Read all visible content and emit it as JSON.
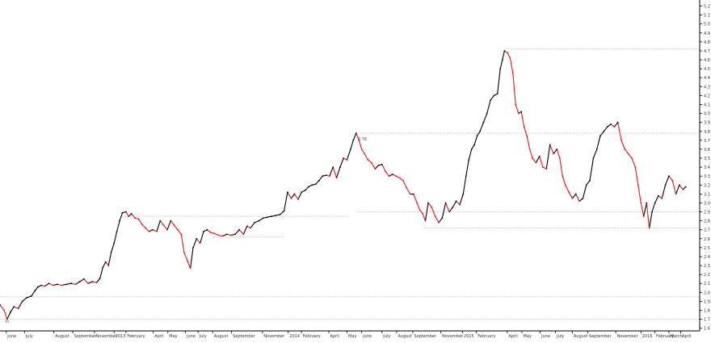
{
  "chart_data": {
    "type": "line",
    "title": "",
    "xlabel": "",
    "ylabel": "",
    "ylim": [
      1.57,
      5.25
    ],
    "y_ticks": [
      1.6,
      1.7,
      1.8,
      1.9,
      2.0,
      2.1,
      2.2,
      2.3,
      2.4,
      2.5,
      2.6,
      2.7,
      2.8,
      2.9,
      3.0,
      3.1,
      3.2,
      3.3,
      3.4,
      3.5,
      3.6,
      3.7,
      3.8,
      3.9,
      4.0,
      4.1,
      4.2,
      4.3,
      4.4,
      4.5,
      4.6,
      4.7,
      4.8,
      4.9,
      5.0,
      5.1,
      5.2
    ],
    "y_tick_labels": [
      "1.6",
      "1.7",
      "1.8",
      "1.9",
      "2.0",
      "2.1",
      "2.2",
      "2.3",
      "2.4",
      "2.5",
      "2.6",
      "2.7",
      "2.8",
      "2.9",
      "3.0",
      "3.1",
      "3.2",
      "3.3",
      "3.4",
      "3.5",
      "3.6",
      "3.7",
      "3.8",
      "3.9",
      "4.0",
      "4.1",
      "4.2",
      "4.3",
      "4.4",
      "4.5",
      "4.6",
      "4.7",
      "4.8",
      "4.9",
      "5.0",
      "5.1",
      "5.2"
    ],
    "x_range": [
      0,
      100
    ],
    "x_ticks": [
      {
        "x": 0.9,
        "label": "June"
      },
      {
        "x": 3.5,
        "label": "July"
      },
      {
        "x": 7.7,
        "label": "August"
      },
      {
        "x": 10.4,
        "label": "September"
      },
      {
        "x": 13.5,
        "label": "November"
      },
      {
        "x": 16.3,
        "label": "2013"
      },
      {
        "x": 18.0,
        "label": "February"
      },
      {
        "x": 21.9,
        "label": "April"
      },
      {
        "x": 24.0,
        "label": "May"
      },
      {
        "x": 26.5,
        "label": "June"
      },
      {
        "x": 28.3,
        "label": "July"
      },
      {
        "x": 30.4,
        "label": "August"
      },
      {
        "x": 33.1,
        "label": "September"
      },
      {
        "x": 37.5,
        "label": "November"
      },
      {
        "x": 41.2,
        "label": "2014"
      },
      {
        "x": 43.1,
        "label": "February"
      },
      {
        "x": 47.0,
        "label": "April"
      },
      {
        "x": 49.6,
        "label": "May"
      },
      {
        "x": 51.7,
        "label": "June"
      },
      {
        "x": 54.6,
        "label": "July"
      },
      {
        "x": 56.7,
        "label": "August"
      },
      {
        "x": 59.0,
        "label": "September"
      },
      {
        "x": 63.0,
        "label": "November"
      },
      {
        "x": 66.1,
        "label": "2015"
      },
      {
        "x": 68.1,
        "label": "February"
      },
      {
        "x": 72.5,
        "label": "April"
      },
      {
        "x": 74.6,
        "label": "May"
      },
      {
        "x": 77.2,
        "label": "June"
      },
      {
        "x": 79.4,
        "label": "July"
      },
      {
        "x": 81.8,
        "label": "August"
      },
      {
        "x": 84.0,
        "label": "September"
      },
      {
        "x": 88.0,
        "label": "November"
      },
      {
        "x": 91.6,
        "label": "2016"
      },
      {
        "x": 93.6,
        "label": "February"
      },
      {
        "x": 95.6,
        "label": "March"
      },
      {
        "x": 97.3,
        "label": "April"
      }
    ],
    "series": [
      {
        "values": [
          [
            0.0,
            1.86
          ],
          [
            0.6,
            1.8
          ],
          [
            1.0,
            1.7
          ],
          [
            1.5,
            1.78
          ],
          [
            2.0,
            1.84
          ],
          [
            2.6,
            1.82
          ],
          [
            3.2,
            1.9
          ],
          [
            3.8,
            1.94
          ],
          [
            4.5,
            1.96
          ],
          [
            5.0,
            2.02
          ],
          [
            5.4,
            2.06
          ],
          [
            5.9,
            2.08
          ],
          [
            6.4,
            2.07
          ],
          [
            7.0,
            2.1
          ],
          [
            7.6,
            2.08
          ],
          [
            8.2,
            2.09
          ],
          [
            8.8,
            2.08
          ],
          [
            9.5,
            2.09
          ],
          [
            10.2,
            2.1
          ],
          [
            10.8,
            2.09
          ],
          [
            11.4,
            2.12
          ],
          [
            12.0,
            2.15
          ],
          [
            12.6,
            2.1
          ],
          [
            13.2,
            2.12
          ],
          [
            13.8,
            2.11
          ],
          [
            14.3,
            2.16
          ],
          [
            14.7,
            2.28
          ],
          [
            15.1,
            2.34
          ],
          [
            15.5,
            2.3
          ],
          [
            15.9,
            2.45
          ],
          [
            16.3,
            2.55
          ],
          [
            16.7,
            2.68
          ],
          [
            17.1,
            2.8
          ],
          [
            17.5,
            2.89
          ],
          [
            18.0,
            2.9
          ],
          [
            18.4,
            2.85
          ],
          [
            18.8,
            2.88
          ],
          [
            19.3,
            2.83
          ],
          [
            19.8,
            2.82
          ],
          [
            20.3,
            2.76
          ],
          [
            20.8,
            2.72
          ],
          [
            21.3,
            2.68
          ],
          [
            21.8,
            2.7
          ],
          [
            22.4,
            2.68
          ],
          [
            22.9,
            2.8
          ],
          [
            23.4,
            2.75
          ],
          [
            23.9,
            2.7
          ],
          [
            24.4,
            2.8
          ],
          [
            24.9,
            2.75
          ],
          [
            25.4,
            2.7
          ],
          [
            25.9,
            2.65
          ],
          [
            26.3,
            2.45
          ],
          [
            26.8,
            2.35
          ],
          [
            27.2,
            2.27
          ],
          [
            27.6,
            2.5
          ],
          [
            28.1,
            2.6
          ],
          [
            28.6,
            2.55
          ],
          [
            29.1,
            2.68
          ],
          [
            29.6,
            2.7
          ],
          [
            30.1,
            2.67
          ],
          [
            30.6,
            2.66
          ],
          [
            31.2,
            2.64
          ],
          [
            31.8,
            2.63
          ],
          [
            32.4,
            2.65
          ],
          [
            33.0,
            2.64
          ],
          [
            33.6,
            2.65
          ],
          [
            34.2,
            2.7
          ],
          [
            34.8,
            2.65
          ],
          [
            35.3,
            2.74
          ],
          [
            35.8,
            2.72
          ],
          [
            36.4,
            2.78
          ],
          [
            37.0,
            2.8
          ],
          [
            37.6,
            2.83
          ],
          [
            38.2,
            2.84
          ],
          [
            38.8,
            2.85
          ],
          [
            39.4,
            2.86
          ],
          [
            40.0,
            2.87
          ],
          [
            40.6,
            2.91
          ],
          [
            41.1,
            3.12
          ],
          [
            41.6,
            3.05
          ],
          [
            42.1,
            3.1
          ],
          [
            42.6,
            3.04
          ],
          [
            43.1,
            3.12
          ],
          [
            43.6,
            3.14
          ],
          [
            44.1,
            3.18
          ],
          [
            44.6,
            3.2
          ],
          [
            45.1,
            3.21
          ],
          [
            45.6,
            3.25
          ],
          [
            46.1,
            3.3
          ],
          [
            46.6,
            3.31
          ],
          [
            47.1,
            3.3
          ],
          [
            47.6,
            3.4
          ],
          [
            48.1,
            3.28
          ],
          [
            48.6,
            3.4
          ],
          [
            49.1,
            3.5
          ],
          [
            49.6,
            3.48
          ],
          [
            50.1,
            3.6
          ],
          [
            50.5,
            3.7
          ],
          [
            50.9,
            3.78
          ],
          [
            51.3,
            3.7
          ],
          [
            51.7,
            3.6
          ],
          [
            52.1,
            3.55
          ],
          [
            52.6,
            3.48
          ],
          [
            53.1,
            3.45
          ],
          [
            53.6,
            3.38
          ],
          [
            54.1,
            3.42
          ],
          [
            54.6,
            3.43
          ],
          [
            55.1,
            3.35
          ],
          [
            55.6,
            3.3
          ],
          [
            56.1,
            3.32
          ],
          [
            56.6,
            3.3
          ],
          [
            57.1,
            3.28
          ],
          [
            57.6,
            3.25
          ],
          [
            58.1,
            3.17
          ],
          [
            58.6,
            3.1
          ],
          [
            59.1,
            3.1
          ],
          [
            59.6,
            3.0
          ],
          [
            60.0,
            2.92
          ],
          [
            60.4,
            2.88
          ],
          [
            60.8,
            2.8
          ],
          [
            61.2,
            3.0
          ],
          [
            61.7,
            2.95
          ],
          [
            62.2,
            2.85
          ],
          [
            62.7,
            2.78
          ],
          [
            63.2,
            2.83
          ],
          [
            63.7,
            3.0
          ],
          [
            64.2,
            2.9
          ],
          [
            64.7,
            2.95
          ],
          [
            65.2,
            3.02
          ],
          [
            65.7,
            2.98
          ],
          [
            66.2,
            3.1
          ],
          [
            66.6,
            3.3
          ],
          [
            67.0,
            3.48
          ],
          [
            67.4,
            3.6
          ],
          [
            67.8,
            3.65
          ],
          [
            68.2,
            3.75
          ],
          [
            68.6,
            3.8
          ],
          [
            69.1,
            3.9
          ],
          [
            69.6,
            4.0
          ],
          [
            70.1,
            4.15
          ],
          [
            70.6,
            4.2
          ],
          [
            71.1,
            4.22
          ],
          [
            71.5,
            4.5
          ],
          [
            71.8,
            4.6
          ],
          [
            72.1,
            4.7
          ],
          [
            72.5,
            4.68
          ],
          [
            72.9,
            4.62
          ],
          [
            73.3,
            4.45
          ],
          [
            73.7,
            4.1
          ],
          [
            74.1,
            4.0
          ],
          [
            74.5,
            4.02
          ],
          [
            74.9,
            3.85
          ],
          [
            75.3,
            3.75
          ],
          [
            75.7,
            3.6
          ],
          [
            76.1,
            3.5
          ],
          [
            76.6,
            3.45
          ],
          [
            77.1,
            3.52
          ],
          [
            77.6,
            3.4
          ],
          [
            78.1,
            3.38
          ],
          [
            78.6,
            3.65
          ],
          [
            79.1,
            3.55
          ],
          [
            79.6,
            3.6
          ],
          [
            80.0,
            3.5
          ],
          [
            80.4,
            3.3
          ],
          [
            80.8,
            3.2
          ],
          [
            81.3,
            3.12
          ],
          [
            81.8,
            3.05
          ],
          [
            82.3,
            3.1
          ],
          [
            82.8,
            3.02
          ],
          [
            83.3,
            3.05
          ],
          [
            83.8,
            3.2
          ],
          [
            84.3,
            3.25
          ],
          [
            84.8,
            3.5
          ],
          [
            85.3,
            3.6
          ],
          [
            85.8,
            3.75
          ],
          [
            86.3,
            3.8
          ],
          [
            86.8,
            3.85
          ],
          [
            87.3,
            3.88
          ],
          [
            87.8,
            3.85
          ],
          [
            88.3,
            3.9
          ],
          [
            88.8,
            3.7
          ],
          [
            89.3,
            3.6
          ],
          [
            89.8,
            3.55
          ],
          [
            90.3,
            3.5
          ],
          [
            90.8,
            3.4
          ],
          [
            91.2,
            3.2
          ],
          [
            91.6,
            3.0
          ],
          [
            92.0,
            2.85
          ],
          [
            92.4,
            3.0
          ],
          [
            92.8,
            2.72
          ],
          [
            93.2,
            2.9
          ],
          [
            93.6,
            3.0
          ],
          [
            94.1,
            3.08
          ],
          [
            94.6,
            3.05
          ],
          [
            95.1,
            3.2
          ],
          [
            95.6,
            3.3
          ],
          [
            96.1,
            3.25
          ],
          [
            96.6,
            3.1
          ],
          [
            97.1,
            3.2
          ],
          [
            97.6,
            3.15
          ],
          [
            98.0,
            3.18
          ]
        ]
      }
    ],
    "reference_lines": [
      {
        "y": 1.7,
        "x_from": 0,
        "x_to": 100
      },
      {
        "y": 1.95,
        "x_from": 0,
        "x_to": 100
      },
      {
        "y": 2.62,
        "x_from": 30.5,
        "x_to": 40.6
      },
      {
        "y": 2.85,
        "x_from": 17.5,
        "x_to": 50.1
      },
      {
        "y": 2.9,
        "x_from": 50.9,
        "x_to": 100
      },
      {
        "y": 2.72,
        "x_from": 60.5,
        "x_to": 100
      },
      {
        "y": 3.78,
        "x_from": 51.5,
        "x_to": 100
      },
      {
        "y": 4.72,
        "x_from": 72.2,
        "x_to": 100
      }
    ],
    "annotations": [
      {
        "x": 50.9,
        "y": 3.7,
        "text": "3.78"
      },
      {
        "x": 0.5,
        "y": 1.66,
        "text": "m"
      }
    ],
    "grid": false,
    "legend": "none",
    "colors": {
      "up": "#000000",
      "down": "#e8141c",
      "ref_line": "#b4b4b4",
      "axis": "#000000",
      "text": "#333333"
    }
  }
}
